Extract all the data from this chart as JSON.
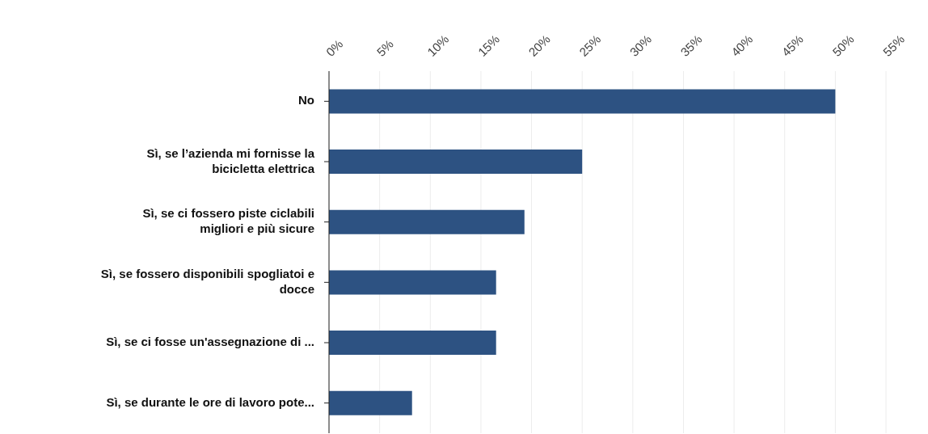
{
  "chart_data": {
    "type": "bar",
    "orientation": "horizontal",
    "categories": [
      "No",
      "Sì, se l’azienda mi fornisse la bicicletta elettrica",
      "Sì, se ci fossero piste ciclabili migliori e più sicure",
      "Sì, se fossero disponibili spogliatoi e docce",
      "Sì, se ci fosse un'assegnazione di ...",
      "Sì, se durante le ore di lavoro pote..."
    ],
    "values": [
      50,
      25,
      19.3,
      16.5,
      16.5,
      8.2
    ],
    "color": "#2d5282",
    "xlim": [
      0,
      55
    ],
    "xticks": [
      {
        "value": 0,
        "label": "0%"
      },
      {
        "value": 5,
        "label": "5%"
      },
      {
        "value": 10,
        "label": "10%"
      },
      {
        "value": 15,
        "label": "15%"
      },
      {
        "value": 20,
        "label": "20%"
      },
      {
        "value": 25,
        "label": "25%"
      },
      {
        "value": 30,
        "label": "30%"
      },
      {
        "value": 35,
        "label": "35%"
      },
      {
        "value": 40,
        "label": "40%"
      },
      {
        "value": 45,
        "label": "45%"
      },
      {
        "value": 50,
        "label": "50%"
      },
      {
        "value": 55,
        "label": "55%"
      }
    ],
    "grid": "x"
  }
}
